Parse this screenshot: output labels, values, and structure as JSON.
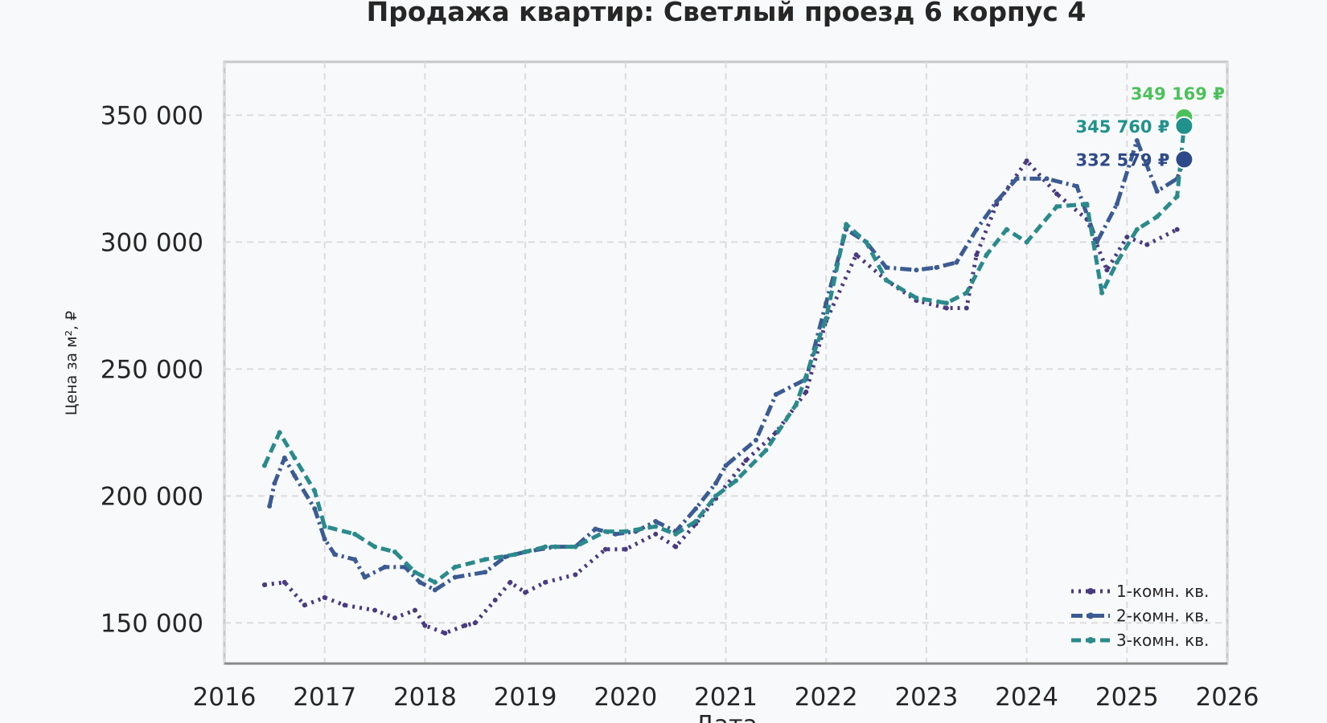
{
  "chart_data": {
    "type": "line",
    "title": "Продажа квартир: Светлый проезд 6 корпус 4",
    "xlabel": "Дата",
    "ylabel": "Цена за м², ₽",
    "xlim": [
      2016,
      2026
    ],
    "ylim": [
      134000,
      371000
    ],
    "x_ticks": [
      "2016",
      "2017",
      "2018",
      "2019",
      "2020",
      "2021",
      "2022",
      "2023",
      "2024",
      "2025",
      "2026"
    ],
    "y_ticks": [
      150000,
      200000,
      250000,
      300000,
      350000
    ],
    "y_tick_labels": [
      "150 000",
      "200 000",
      "250 000",
      "300 000",
      "350 000"
    ],
    "grid": true,
    "legend_position": "lower-right",
    "series": [
      {
        "name": "1-комн. кв.",
        "color": "#4a3a80",
        "style": "dotted",
        "marker": "diamond",
        "x": [
          2016.4,
          2016.6,
          2016.8,
          2017.0,
          2017.2,
          2017.5,
          2017.7,
          2017.9,
          2018.0,
          2018.2,
          2018.4,
          2018.5,
          2018.7,
          2018.85,
          2019.0,
          2019.2,
          2019.5,
          2019.8,
          2020.0,
          2020.3,
          2020.5,
          2020.7,
          2020.9,
          2021.2,
          2021.5,
          2021.8,
          2022.0,
          2022.3,
          2022.6,
          2022.9,
          2023.2,
          2023.4,
          2023.5,
          2023.7,
          2024.0,
          2024.3,
          2024.6,
          2024.8,
          2025.0,
          2025.2,
          2025.5
        ],
        "y": [
          165000,
          166000,
          157000,
          160000,
          157000,
          155000,
          152000,
          155000,
          149000,
          146000,
          149000,
          150000,
          159000,
          166000,
          162000,
          166000,
          169000,
          179000,
          179000,
          185000,
          180000,
          189000,
          199000,
          214000,
          225000,
          241000,
          269000,
          295000,
          285000,
          277000,
          274000,
          274000,
          295000,
          315000,
          332000,
          319000,
          309000,
          289000,
          302000,
          299000,
          305000
        ]
      },
      {
        "name": "2-комн. кв.",
        "color": "#3b5b93",
        "style": "dashdot",
        "marker": "circle",
        "x": [
          2016.45,
          2016.5,
          2016.6,
          2016.7,
          2016.9,
          2017.0,
          2017.1,
          2017.3,
          2017.4,
          2017.6,
          2017.8,
          2017.95,
          2018.1,
          2018.3,
          2018.6,
          2018.8,
          2019.0,
          2019.3,
          2019.5,
          2019.7,
          2019.9,
          2020.1,
          2020.3,
          2020.5,
          2020.7,
          2020.9,
          2021.0,
          2021.3,
          2021.5,
          2021.8,
          2022.0,
          2022.2,
          2022.4,
          2022.6,
          2022.9,
          2023.1,
          2023.3,
          2023.5,
          2023.7,
          2023.9,
          2024.2,
          2024.5,
          2024.7,
          2024.9,
          2025.1,
          2025.3,
          2025.5,
          2025.57
        ],
        "y": [
          196000,
          205000,
          215000,
          208000,
          195000,
          183000,
          177000,
          175000,
          168000,
          172000,
          172000,
          166000,
          163000,
          168000,
          170000,
          176000,
          178000,
          180000,
          180000,
          187000,
          185000,
          186000,
          190000,
          186000,
          195000,
          205000,
          212000,
          222000,
          240000,
          246000,
          276000,
          305000,
          300000,
          290000,
          289000,
          290000,
          292000,
          305000,
          316000,
          325000,
          325000,
          322000,
          300000,
          315000,
          340000,
          320000,
          325000,
          332579
        ]
      },
      {
        "name": "3-комн. кв.",
        "color": "#2a8a8c",
        "style": "dashed",
        "marker": "triangle",
        "x": [
          2016.4,
          2016.55,
          2016.7,
          2016.9,
          2017.0,
          2017.3,
          2017.5,
          2017.7,
          2017.9,
          2018.1,
          2018.3,
          2018.6,
          2018.9,
          2019.2,
          2019.5,
          2019.8,
          2020.0,
          2020.3,
          2020.5,
          2020.7,
          2020.9,
          2021.1,
          2021.4,
          2021.7,
          2022.0,
          2022.2,
          2022.4,
          2022.6,
          2022.9,
          2023.2,
          2023.4,
          2023.6,
          2023.8,
          2024.0,
          2024.3,
          2024.6,
          2024.75,
          2024.9,
          2025.1,
          2025.3,
          2025.5,
          2025.57
        ],
        "y": [
          212000,
          225000,
          215000,
          202000,
          188000,
          185000,
          180000,
          178000,
          170000,
          166000,
          172000,
          175000,
          177000,
          180000,
          180000,
          186000,
          186000,
          188000,
          185000,
          190000,
          200000,
          206000,
          218000,
          236000,
          270000,
          307000,
          300000,
          285000,
          278000,
          276000,
          280000,
          295000,
          305000,
          300000,
          314000,
          315000,
          280000,
          292000,
          305000,
          310000,
          318000,
          345760
        ]
      }
    ],
    "annotations": [
      {
        "label": "349 169 ₽",
        "x": 2025.57,
        "y": 349169,
        "color": "#4cc15b"
      },
      {
        "label": "345 760 ₽",
        "x": 2025.57,
        "y": 345760,
        "color": "#21918c"
      },
      {
        "label": "332 579 ₽",
        "x": 2025.57,
        "y": 332579,
        "color": "#2f4a8a"
      }
    ]
  }
}
